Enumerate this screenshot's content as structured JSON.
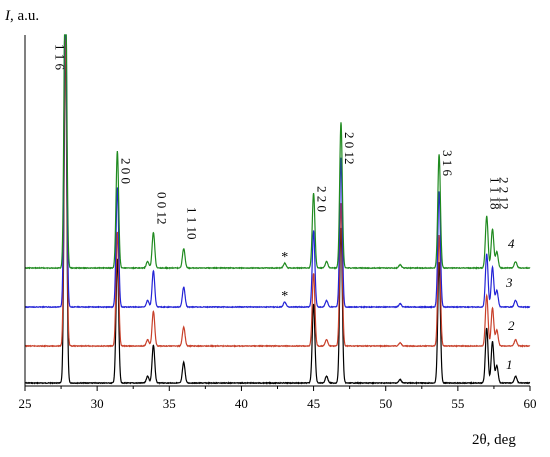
{
  "chart_data": {
    "type": "line",
    "xlabel": "2θ, deg",
    "ylabel_italic": "I",
    "ylabel_unit": ", a.u.",
    "xlim": [
      25,
      60
    ],
    "x_ticks": [
      "25",
      "30",
      "35",
      "40",
      "45",
      "50",
      "55",
      "60"
    ],
    "peaks": [
      {
        "x": 27.8,
        "h": 1.0
      },
      {
        "x": 31.4,
        "h": 0.36
      },
      {
        "x": 33.5,
        "h": 0.02
      },
      {
        "x": 33.9,
        "h": 0.11
      },
      {
        "x": 36.0,
        "h": 0.06
      },
      {
        "x": 45.0,
        "h": 0.23
      },
      {
        "x": 45.9,
        "h": 0.02
      },
      {
        "x": 46.9,
        "h": 0.45
      },
      {
        "x": 51.0,
        "h": 0.01
      },
      {
        "x": 53.7,
        "h": 0.35
      },
      {
        "x": 57.0,
        "h": 0.16
      },
      {
        "x": 57.4,
        "h": 0.12
      },
      {
        "x": 57.7,
        "h": 0.05
      },
      {
        "x": 59.0,
        "h": 0.02
      }
    ],
    "impurity_peak": {
      "x": 43.0,
      "h": 0.015
    },
    "series": [
      {
        "label": "1",
        "color": "#000000",
        "has_impurity": false,
        "scale": 1.0
      },
      {
        "label": "2",
        "color": "#c8402a",
        "has_impurity": false,
        "scale": 0.92
      },
      {
        "label": "3",
        "color": "#2323d6",
        "has_impurity": true,
        "scale": 0.96
      },
      {
        "label": "4",
        "color": "#1f8a1f",
        "has_impurity": true,
        "scale": 0.94
      }
    ],
    "peak_labels": [
      {
        "text": "1 1 6",
        "x": 27.8
      },
      {
        "text": "2 0 0",
        "x": 31.4
      },
      {
        "text": "0 0 12",
        "x": 33.9
      },
      {
        "text": "1 1 10",
        "x": 36.0
      },
      {
        "text": "2 2 0",
        "x": 45.0
      },
      {
        "text": "2 0 12",
        "x": 46.9
      },
      {
        "text": "3 1 6",
        "x": 53.7
      },
      {
        "text": "1 1 18",
        "x": 57.0
      },
      {
        "text": "2 2 12",
        "x": 57.6
      }
    ],
    "star_symbol": "*",
    "grid": false
  }
}
